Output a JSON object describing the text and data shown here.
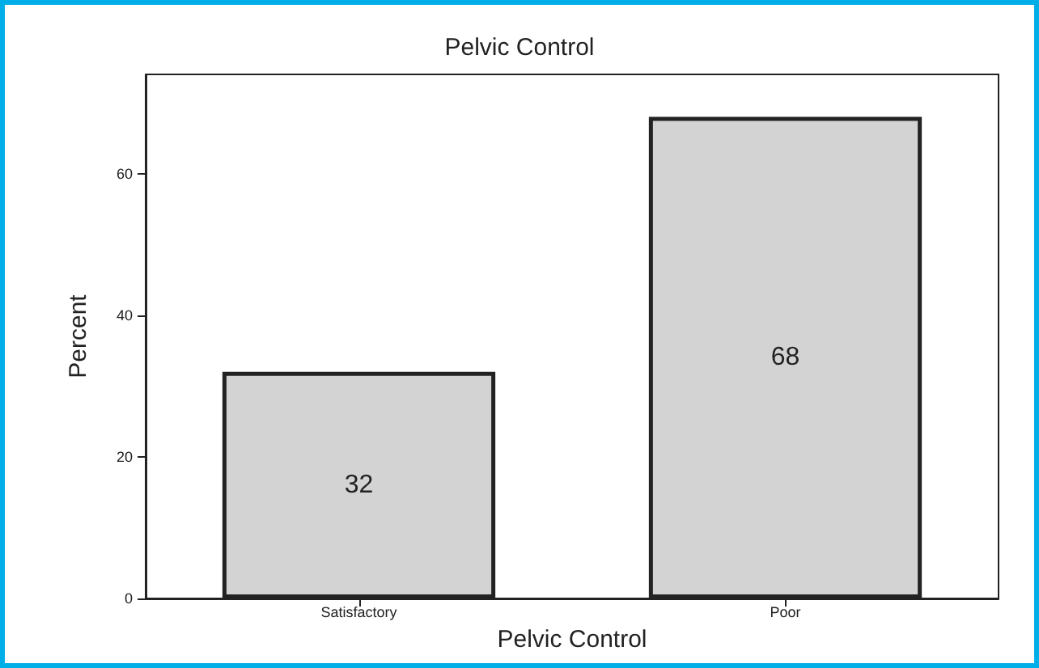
{
  "chart_data": {
    "type": "bar",
    "title": "Pelvic Control",
    "xlabel": "Pelvic Control",
    "ylabel": "Percent",
    "categories": [
      "Satisfactory",
      "Poor"
    ],
    "values": [
      32,
      68
    ],
    "color": "#d3d3d3",
    "ylim": [
      0,
      74
    ],
    "yticks": [
      0,
      20,
      40,
      60
    ],
    "data_labels": true
  }
}
